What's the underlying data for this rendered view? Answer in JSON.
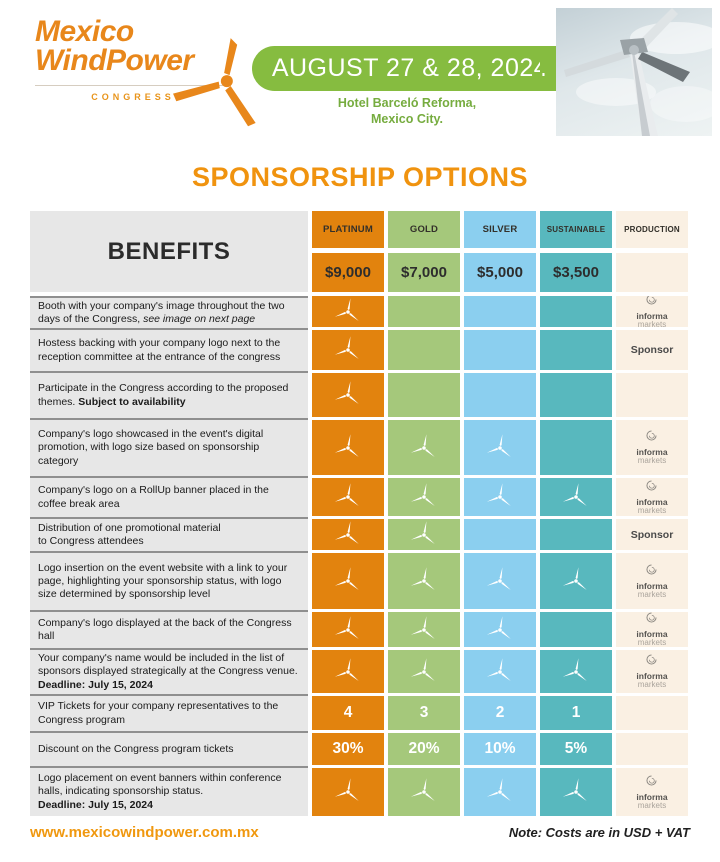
{
  "header": {
    "logo": {
      "line1": "Mexico",
      "line2": "WindPower",
      "congress": "CONGRESS"
    },
    "banner": {
      "date": "AUGUST 27 & 28, 2024"
    },
    "venue": {
      "line1": "Hotel Barceló Reforma,",
      "line2": "Mexico City."
    }
  },
  "title": "SPONSORSHIP OPTIONS",
  "table": {
    "benefits_header": "BENEFITS",
    "sponsor_label": "Sponsor",
    "production_logo": {
      "line1": "informa",
      "line2": "markets"
    },
    "check_icon": "wind-turbine-icon",
    "tiers": [
      {
        "name": "PLATINUM",
        "price": "$9,000",
        "color": "#E2830E"
      },
      {
        "name": "GOLD",
        "price": "$7,000",
        "color": "#A5C87B"
      },
      {
        "name": "SILVER",
        "price": "$5,000",
        "color": "#8BCFEF"
      },
      {
        "name": "SUSTAINABLE",
        "price": "$3,500",
        "color": "#58B8BE"
      },
      {
        "name": "PRODUCTION",
        "price": "",
        "color": "#FAF0E3"
      }
    ],
    "rows": [
      {
        "benefit": "Booth with your  company's image throughout the two days of the Congress, ",
        "italic": "see image on next page",
        "cells": [
          "turbine",
          "",
          "",
          ""
        ],
        "production": "informa"
      },
      {
        "benefit": "Hostess backing with your company logo next to the reception committee at the entrance of the congress",
        "cells": [
          "turbine",
          "",
          "",
          ""
        ],
        "production": "sponsor"
      },
      {
        "benefit": "Participate in the Congress according to the proposed themes. ",
        "bold": "Subject to availability",
        "cells": [
          "turbine",
          "",
          "",
          ""
        ],
        "production": ""
      },
      {
        "benefit": "Company's logo showcased in the event's digital promotion, with logo size based on sponsorship category",
        "cells": [
          "turbine",
          "turbine",
          "turbine",
          ""
        ],
        "production": "informa"
      },
      {
        "benefit": "Company's logo on a RollUp banner placed in the coffee break area",
        "cells": [
          "turbine",
          "turbine",
          "turbine",
          "turbine"
        ],
        "production": "informa"
      },
      {
        "benefit": "Distribution of one promotional material\nto Congress attendees",
        "cells": [
          "turbine",
          "turbine",
          "",
          ""
        ],
        "production": "sponsor"
      },
      {
        "benefit": "Logo insertion on the event website with a link to your page, highlighting your sponsorship status, with logo size determined by sponsorship level",
        "cells": [
          "turbine",
          "turbine",
          "turbine",
          "turbine"
        ],
        "production": "informa"
      },
      {
        "benefit": "Company's logo displayed at the back of the Congress hall",
        "cells": [
          "turbine",
          "turbine",
          "turbine",
          ""
        ],
        "production": "informa"
      },
      {
        "benefit": "Your company's name would be included in the list of sponsors displayed strategically at the Congress venue.",
        "deadline": "Deadline: July 15, 2024",
        "cells": [
          "turbine",
          "turbine",
          "turbine",
          "turbine"
        ],
        "production": "informa"
      },
      {
        "benefit": "VIP Tickets for your company representatives to the Congress program",
        "cells": [
          "4",
          "3",
          "2",
          "1"
        ],
        "production": ""
      },
      {
        "benefit": "Discount on the Congress program tickets",
        "cells": [
          "30%",
          "20%",
          "10%",
          "5%"
        ],
        "production": ""
      },
      {
        "benefit": "Logo placement on event banners within conference halls, indicating sponsorship status.",
        "deadline": "Deadline: July 15, 2024",
        "cells": [
          "turbine",
          "turbine",
          "turbine",
          "turbine"
        ],
        "production": "informa"
      }
    ]
  },
  "footer": {
    "website": "www.mexicowindpower.com.mx",
    "note": "Note: Costs are in USD + VAT"
  }
}
